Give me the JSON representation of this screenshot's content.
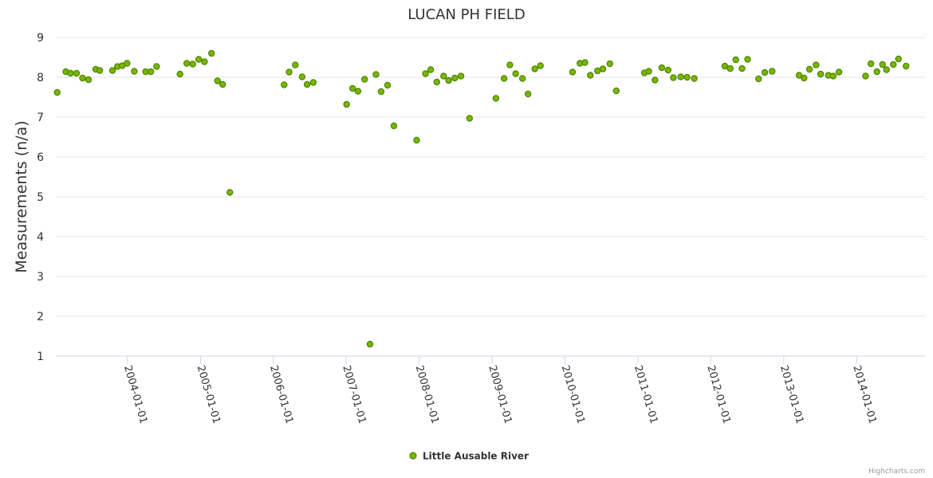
{
  "chart_data": {
    "type": "scatter",
    "title": "LUCAN PH FIELD",
    "ylabel": "Measurements (n/a)",
    "xlabel": "",
    "ylim": [
      1,
      9
    ],
    "yticks": [
      1,
      2,
      3,
      4,
      5,
      6,
      7,
      8,
      9
    ],
    "xlim": [
      "2003-01-07",
      "2014-12-10"
    ],
    "xticks": [
      "2004-01-01",
      "2005-01-01",
      "2006-01-01",
      "2007-01-01",
      "2008-01-01",
      "2009-01-01",
      "2010-01-01",
      "2011-01-01",
      "2012-01-01",
      "2013-01-01",
      "2014-01-01"
    ],
    "legend_position": "bottom-center",
    "grid": true,
    "credits": "Highcharts.com",
    "colors": {
      "marker_fill": "#7CB500",
      "marker_stroke": "#4A8700",
      "grid": "#e6e6e6",
      "axis": "#ccd6eb"
    },
    "series": [
      {
        "name": "Little Ausable River",
        "points": [
          [
            "2003-01-14",
            7.62
          ],
          [
            "2003-02-26",
            8.14
          ],
          [
            "2003-03-22",
            8.1
          ],
          [
            "2003-04-21",
            8.1
          ],
          [
            "2003-05-21",
            7.98
          ],
          [
            "2003-06-20",
            7.94
          ],
          [
            "2003-07-26",
            8.2
          ],
          [
            "2003-08-15",
            8.17
          ],
          [
            "2003-10-18",
            8.17
          ],
          [
            "2003-11-12",
            8.27
          ],
          [
            "2003-12-06",
            8.29
          ],
          [
            "2003-12-30",
            8.35
          ],
          [
            "2004-02-04",
            8.15
          ],
          [
            "2004-04-01",
            8.14
          ],
          [
            "2004-04-27",
            8.14
          ],
          [
            "2004-05-26",
            8.27
          ],
          [
            "2004-09-20",
            8.08
          ],
          [
            "2004-10-24",
            8.35
          ],
          [
            "2004-11-23",
            8.33
          ],
          [
            "2004-12-23",
            8.45
          ],
          [
            "2005-01-21",
            8.39
          ],
          [
            "2005-02-25",
            8.6
          ],
          [
            "2005-03-27",
            7.91
          ],
          [
            "2005-04-22",
            7.82
          ],
          [
            "2005-05-28",
            5.11
          ],
          [
            "2006-02-24",
            7.81
          ],
          [
            "2006-03-21",
            8.13
          ],
          [
            "2006-04-21",
            8.31
          ],
          [
            "2006-05-25",
            8.01
          ],
          [
            "2006-06-19",
            7.82
          ],
          [
            "2006-07-20",
            7.87
          ],
          [
            "2007-01-03",
            7.32
          ],
          [
            "2007-02-02",
            7.72
          ],
          [
            "2007-03-01",
            7.65
          ],
          [
            "2007-04-03",
            7.95
          ],
          [
            "2007-04-30",
            1.3
          ],
          [
            "2007-05-30",
            8.07
          ],
          [
            "2007-06-25",
            7.64
          ],
          [
            "2007-07-27",
            7.8
          ],
          [
            "2007-08-28",
            6.78
          ],
          [
            "2007-12-20",
            6.42
          ],
          [
            "2008-02-02",
            8.09
          ],
          [
            "2008-02-28",
            8.19
          ],
          [
            "2008-03-30",
            7.88
          ],
          [
            "2008-05-03",
            8.03
          ],
          [
            "2008-05-28",
            7.92
          ],
          [
            "2008-06-28",
            7.98
          ],
          [
            "2008-07-29",
            8.03
          ],
          [
            "2008-09-10",
            6.97
          ],
          [
            "2009-01-20",
            7.47
          ],
          [
            "2009-03-02",
            7.97
          ],
          [
            "2009-03-31",
            8.31
          ],
          [
            "2009-04-29",
            8.09
          ],
          [
            "2009-06-02",
            7.97
          ],
          [
            "2009-06-30",
            7.58
          ],
          [
            "2009-08-03",
            8.21
          ],
          [
            "2009-08-31",
            8.29
          ],
          [
            "2010-02-08",
            8.13
          ],
          [
            "2010-03-17",
            8.35
          ],
          [
            "2010-04-11",
            8.37
          ],
          [
            "2010-05-08",
            8.05
          ],
          [
            "2010-06-13",
            8.16
          ],
          [
            "2010-07-10",
            8.21
          ],
          [
            "2010-08-14",
            8.34
          ],
          [
            "2010-09-15",
            7.66
          ],
          [
            "2011-02-03",
            8.11
          ],
          [
            "2011-02-25",
            8.15
          ],
          [
            "2011-03-28",
            7.93
          ],
          [
            "2011-05-01",
            8.24
          ],
          [
            "2011-06-02",
            8.18
          ],
          [
            "2011-06-28",
            7.99
          ],
          [
            "2011-08-04",
            8.01
          ],
          [
            "2011-09-05",
            8.0
          ],
          [
            "2011-10-11",
            7.97
          ],
          [
            "2012-03-12",
            8.28
          ],
          [
            "2012-04-08",
            8.22
          ],
          [
            "2012-05-06",
            8.44
          ],
          [
            "2012-06-06",
            8.22
          ],
          [
            "2012-07-04",
            8.45
          ],
          [
            "2012-08-28",
            7.96
          ],
          [
            "2012-09-28",
            8.12
          ],
          [
            "2012-11-04",
            8.15
          ],
          [
            "2013-03-19",
            8.05
          ],
          [
            "2013-04-13",
            7.98
          ],
          [
            "2013-05-10",
            8.2
          ],
          [
            "2013-06-12",
            8.31
          ],
          [
            "2013-07-05",
            8.08
          ],
          [
            "2013-08-13",
            8.05
          ],
          [
            "2013-09-06",
            8.03
          ],
          [
            "2013-10-05",
            8.13
          ],
          [
            "2014-02-15",
            8.03
          ],
          [
            "2014-03-14",
            8.34
          ],
          [
            "2014-04-13",
            8.14
          ],
          [
            "2014-05-11",
            8.32
          ],
          [
            "2014-05-31",
            8.19
          ],
          [
            "2014-07-04",
            8.32
          ],
          [
            "2014-07-30",
            8.46
          ],
          [
            "2014-09-06",
            8.28
          ]
        ]
      }
    ]
  }
}
